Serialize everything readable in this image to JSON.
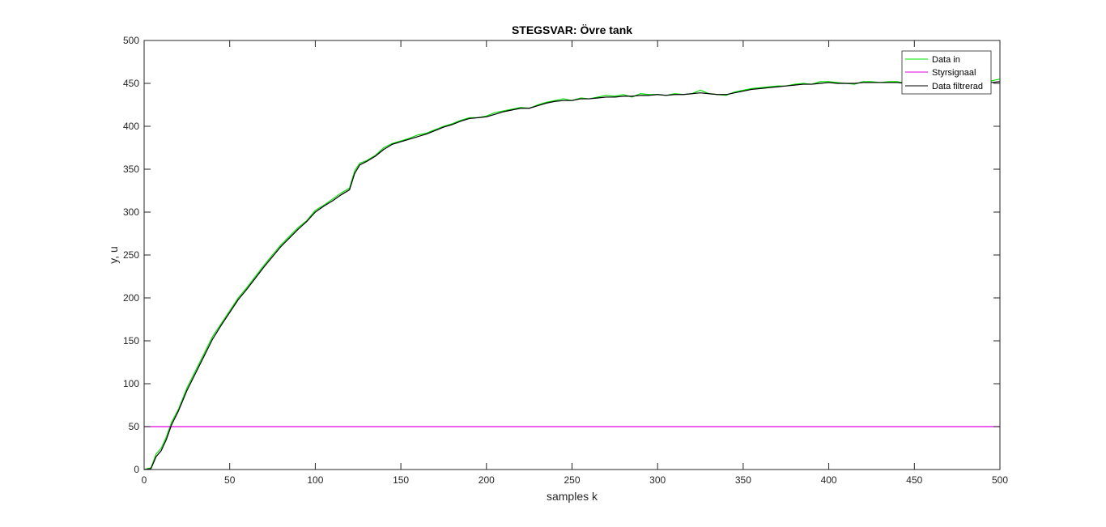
{
  "chart_data": {
    "type": "line",
    "title": "STEGSVAR: Övre tank",
    "xlabel": "samples k",
    "ylabel": "y, u",
    "xlim": [
      0,
      500
    ],
    "ylim": [
      0,
      500
    ],
    "x_ticks": [
      0,
      50,
      100,
      150,
      200,
      250,
      300,
      350,
      400,
      450,
      500
    ],
    "y_ticks": [
      0,
      50,
      100,
      150,
      200,
      250,
      300,
      350,
      400,
      450,
      500
    ],
    "grid": false,
    "legend_position": "top-right",
    "series": [
      {
        "name": "Data in",
        "color": "#00e000",
        "x": [
          0,
          4,
          7,
          10,
          13,
          16,
          20,
          25,
          30,
          35,
          40,
          45,
          50,
          55,
          60,
          65,
          70,
          75,
          80,
          85,
          90,
          95,
          100,
          105,
          110,
          115,
          120,
          123,
          126,
          130,
          135,
          140,
          145,
          150,
          155,
          160,
          165,
          170,
          175,
          180,
          185,
          190,
          195,
          200,
          205,
          210,
          215,
          220,
          225,
          230,
          235,
          240,
          245,
          250,
          255,
          260,
          265,
          270,
          275,
          280,
          285,
          290,
          295,
          300,
          305,
          310,
          315,
          320,
          325,
          330,
          335,
          340,
          345,
          350,
          355,
          360,
          365,
          370,
          375,
          380,
          385,
          390,
          395,
          400,
          405,
          410,
          415,
          420,
          425,
          430,
          435,
          440,
          445,
          450,
          455,
          460,
          465,
          470,
          475,
          480,
          485,
          490,
          495,
          500
        ],
        "y": [
          0,
          2,
          18,
          25,
          38,
          55,
          70,
          95,
          115,
          135,
          155,
          170,
          185,
          200,
          212,
          225,
          238,
          250,
          262,
          272,
          282,
          290,
          302,
          308,
          315,
          322,
          328,
          348,
          357,
          360,
          366,
          375,
          380,
          383,
          386,
          390,
          392,
          396,
          400,
          403,
          407,
          410,
          410,
          412,
          416,
          418,
          420,
          422,
          421,
          425,
          428,
          430,
          432,
          430,
          433,
          432,
          434,
          436,
          435,
          437,
          434,
          438,
          437,
          437,
          436,
          438,
          437,
          438,
          442,
          438,
          437,
          436,
          440,
          442,
          444,
          445,
          446,
          447,
          447,
          449,
          450,
          449,
          452,
          452,
          451,
          450,
          449,
          452,
          452,
          451,
          452,
          452,
          450,
          450,
          451,
          452,
          451,
          453,
          452,
          452,
          452,
          452,
          453,
          455
        ]
      },
      {
        "name": "Styrsignaal",
        "color": "#e000e0",
        "x": [
          0,
          500
        ],
        "y": [
          50,
          50
        ]
      },
      {
        "name": "Data filtrerad",
        "color": "#000000",
        "x": [
          0,
          4,
          7,
          10,
          13,
          16,
          20,
          25,
          30,
          35,
          40,
          45,
          50,
          55,
          60,
          65,
          70,
          75,
          80,
          85,
          90,
          95,
          100,
          105,
          110,
          115,
          120,
          123,
          126,
          130,
          135,
          140,
          145,
          150,
          155,
          160,
          165,
          170,
          175,
          180,
          185,
          190,
          195,
          200,
          205,
          210,
          215,
          220,
          225,
          230,
          235,
          240,
          245,
          250,
          255,
          260,
          265,
          270,
          275,
          280,
          285,
          290,
          295,
          300,
          305,
          310,
          315,
          320,
          325,
          330,
          335,
          340,
          345,
          350,
          355,
          360,
          365,
          370,
          375,
          380,
          385,
          390,
          395,
          400,
          405,
          410,
          415,
          420,
          425,
          430,
          435,
          440,
          445,
          450,
          455,
          460,
          465,
          470,
          475,
          480,
          485,
          490,
          495,
          500
        ],
        "y": [
          0,
          1,
          15,
          22,
          35,
          52,
          68,
          92,
          112,
          132,
          152,
          168,
          183,
          198,
          210,
          223,
          236,
          248,
          260,
          270,
          280,
          289,
          300,
          307,
          313,
          320,
          326,
          345,
          355,
          359,
          365,
          373,
          379,
          382,
          385,
          388,
          391,
          395,
          399,
          402,
          406,
          409,
          410,
          411,
          414,
          417,
          419,
          421,
          421,
          424,
          427,
          429,
          430,
          430,
          432,
          432,
          433,
          434,
          434,
          435,
          435,
          436,
          436,
          437,
          436,
          437,
          437,
          438,
          439,
          438,
          437,
          437,
          439,
          441,
          443,
          444,
          445,
          446,
          447,
          448,
          449,
          449,
          450,
          451,
          450,
          450,
          450,
          451,
          451,
          451,
          451,
          451,
          450,
          450,
          450,
          451,
          451,
          451,
          452,
          452,
          452,
          452,
          451,
          452
        ]
      }
    ]
  }
}
